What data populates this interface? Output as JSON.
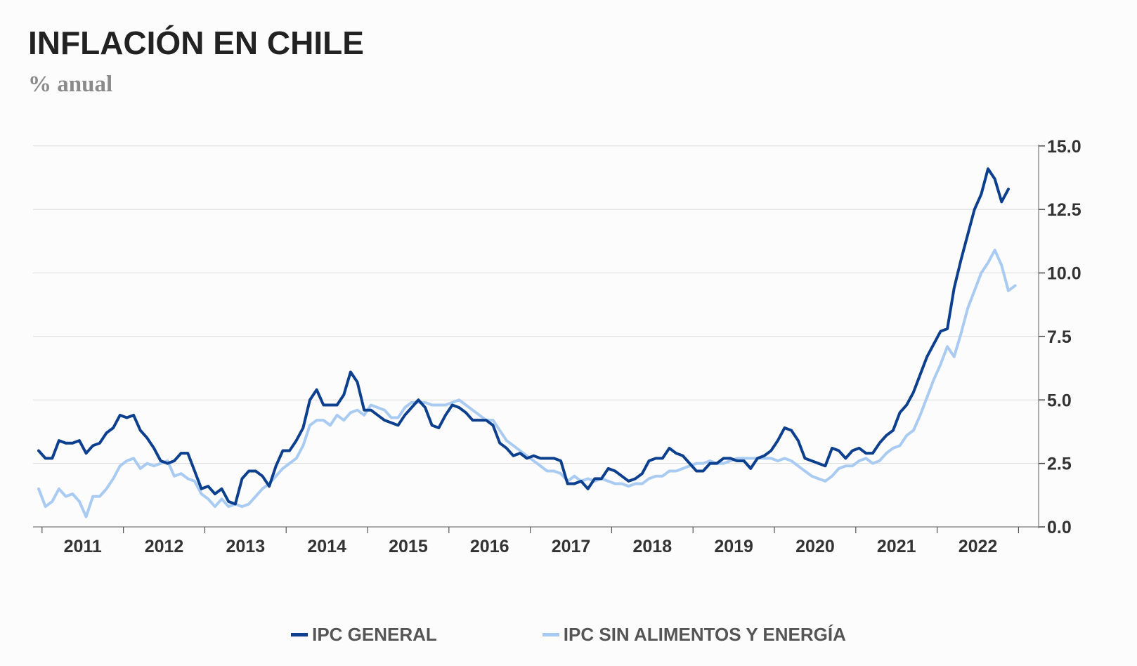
{
  "title": "INFLACIÓN EN CHILE",
  "subtitle": "% anual",
  "chart_data": {
    "type": "line",
    "x_start": "2010-12",
    "x_step": "month",
    "x_ticks": [
      "2011",
      "2012",
      "2013",
      "2014",
      "2015",
      "2016",
      "2017",
      "2018",
      "2019",
      "2020",
      "2021",
      "2022"
    ],
    "y_ticks": [
      "0.0",
      "2.5",
      "5.0",
      "7.5",
      "10.0",
      "12.5",
      "15.0"
    ],
    "ylim": [
      0,
      15
    ],
    "y_axis_position": "right",
    "grid": "horizontal",
    "legend_position": "bottom-center",
    "series": [
      {
        "name": "IPC GENERAL",
        "color": "#0d3f8f",
        "values": [
          3.0,
          2.7,
          2.7,
          3.4,
          3.3,
          3.3,
          3.4,
          2.9,
          3.2,
          3.3,
          3.7,
          3.9,
          4.4,
          4.3,
          4.4,
          3.8,
          3.5,
          3.1,
          2.6,
          2.5,
          2.6,
          2.9,
          2.9,
          2.2,
          1.5,
          1.6,
          1.3,
          1.5,
          1.0,
          0.9,
          1.9,
          2.2,
          2.2,
          2.0,
          1.6,
          2.4,
          3.0,
          3.0,
          3.4,
          3.9,
          5.0,
          5.4,
          4.8,
          4.8,
          4.8,
          5.2,
          6.1,
          5.7,
          4.6,
          4.6,
          4.4,
          4.2,
          4.1,
          4.0,
          4.4,
          4.7,
          5.0,
          4.7,
          4.0,
          3.9,
          4.4,
          4.8,
          4.7,
          4.5,
          4.2,
          4.2,
          4.2,
          4.0,
          3.3,
          3.1,
          2.8,
          2.9,
          2.7,
          2.8,
          2.7,
          2.7,
          2.7,
          2.6,
          1.7,
          1.7,
          1.8,
          1.5,
          1.9,
          1.9,
          2.3,
          2.2,
          2.0,
          1.8,
          1.9,
          2.1,
          2.6,
          2.7,
          2.7,
          3.1,
          2.9,
          2.8,
          2.5,
          2.2,
          2.2,
          2.5,
          2.5,
          2.7,
          2.7,
          2.6,
          2.6,
          2.3,
          2.7,
          2.8,
          3.0,
          3.4,
          3.9,
          3.8,
          3.4,
          2.7,
          2.6,
          2.5,
          2.4,
          3.1,
          3.0,
          2.7,
          3.0,
          3.1,
          2.9,
          2.9,
          3.3,
          3.6,
          3.8,
          4.5,
          4.8,
          5.3,
          6.0,
          6.7,
          7.2,
          7.7,
          7.8,
          9.4,
          10.5,
          11.5,
          12.5,
          13.1,
          14.1,
          13.7,
          12.8,
          13.3
        ]
      },
      {
        "name": "IPC SIN ALIMENTOS Y ENERGÍA",
        "color": "#a9cbf2",
        "values": [
          1.5,
          0.8,
          1.0,
          1.5,
          1.2,
          1.3,
          1.0,
          0.4,
          1.2,
          1.2,
          1.5,
          1.9,
          2.4,
          2.6,
          2.7,
          2.3,
          2.5,
          2.4,
          2.5,
          2.6,
          2.0,
          2.1,
          1.9,
          1.8,
          1.3,
          1.1,
          0.8,
          1.1,
          0.8,
          0.9,
          0.8,
          0.9,
          1.2,
          1.5,
          1.7,
          2.0,
          2.3,
          2.5,
          2.7,
          3.2,
          4.0,
          4.2,
          4.2,
          4.0,
          4.4,
          4.2,
          4.5,
          4.6,
          4.4,
          4.8,
          4.7,
          4.6,
          4.3,
          4.3,
          4.7,
          4.9,
          4.9,
          4.9,
          4.8,
          4.8,
          4.8,
          4.9,
          5.0,
          4.8,
          4.6,
          4.4,
          4.2,
          4.2,
          3.8,
          3.4,
          3.2,
          3.0,
          2.8,
          2.6,
          2.4,
          2.2,
          2.2,
          2.1,
          1.8,
          2.0,
          1.8,
          1.9,
          1.8,
          1.9,
          1.8,
          1.7,
          1.7,
          1.6,
          1.7,
          1.7,
          1.9,
          2.0,
          2.0,
          2.2,
          2.2,
          2.3,
          2.4,
          2.5,
          2.5,
          2.6,
          2.5,
          2.5,
          2.6,
          2.7,
          2.7,
          2.7,
          2.7,
          2.7,
          2.7,
          2.6,
          2.7,
          2.6,
          2.4,
          2.2,
          2.0,
          1.9,
          1.8,
          2.0,
          2.3,
          2.4,
          2.4,
          2.6,
          2.7,
          2.5,
          2.6,
          2.9,
          3.1,
          3.2,
          3.6,
          3.8,
          4.4,
          5.1,
          5.8,
          6.4,
          7.1,
          6.7,
          7.6,
          8.6,
          9.3,
          10.0,
          10.4,
          10.9,
          10.3,
          9.3,
          9.5
        ]
      }
    ]
  }
}
